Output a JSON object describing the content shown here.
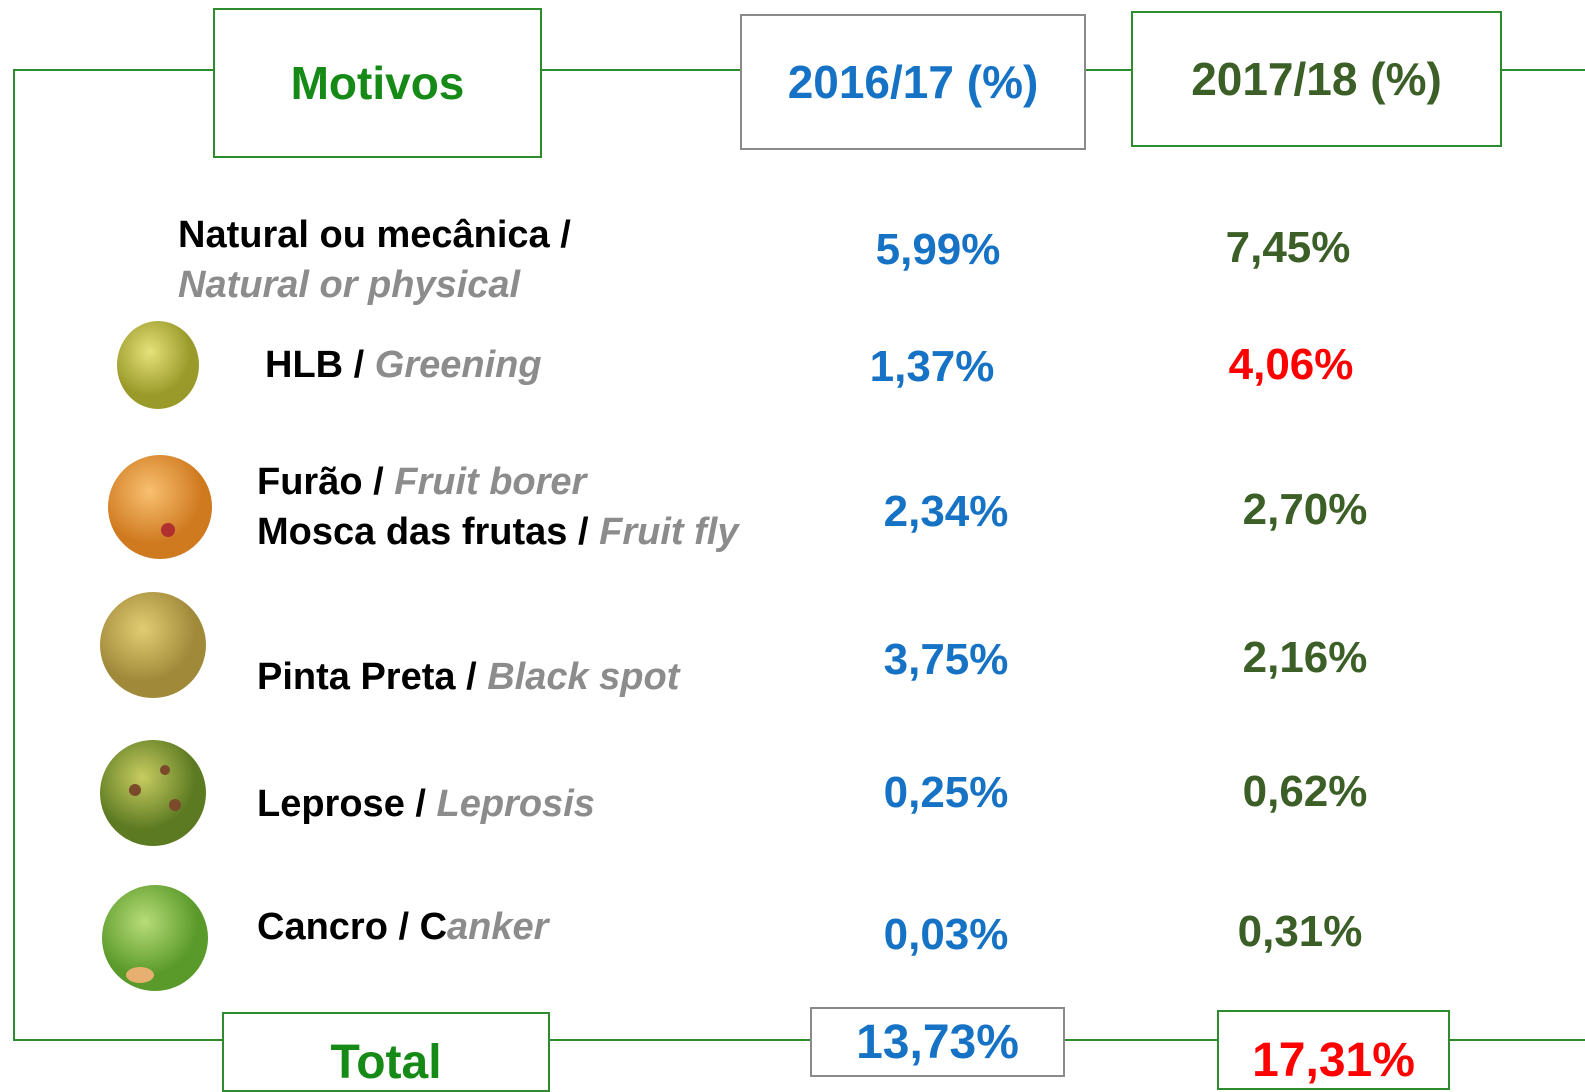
{
  "header": {
    "motivos": "Motivos",
    "col1": "2016/17 (%)",
    "col2": "2017/18 (%)"
  },
  "rows": [
    {
      "lines": [
        {
          "pt": "Natural ou mecânica /",
          "en": ""
        },
        {
          "pt": "",
          "en": "Natural or physical"
        }
      ],
      "v1": "5,99%",
      "v2": "7,45%"
    },
    {
      "lines": [
        {
          "pt": "HLB / ",
          "en": "Greening"
        }
      ],
      "v1": "1,37%",
      "v2": "4,06%"
    },
    {
      "lines": [
        {
          "pt": "Furão / ",
          "en": "Fruit borer"
        },
        {
          "pt": "Mosca das frutas / ",
          "en": "Fruit fly"
        }
      ],
      "v1": "2,34%",
      "v2": "2,70%"
    },
    {
      "lines": [
        {
          "pt": "Pinta Preta / ",
          "en": "Black spot"
        }
      ],
      "v1": "3,75%",
      "v2": "2,16%"
    },
    {
      "lines": [
        {
          "pt": "Leprose / ",
          "en": "Leprosis"
        }
      ],
      "v1": "0,25%",
      "v2": "0,62%"
    },
    {
      "lines": [
        {
          "pt": "Cancro / C",
          "en": "anker"
        }
      ],
      "v1": "0,03%",
      "v2": "0,31%"
    }
  ],
  "total": {
    "label": "Total",
    "v1": "13,73%",
    "v2": "17,31%"
  }
}
